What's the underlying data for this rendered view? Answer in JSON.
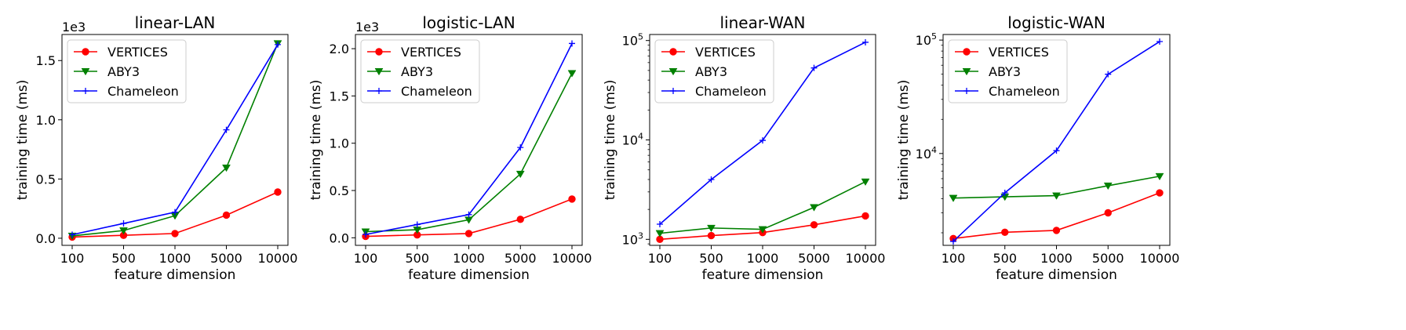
{
  "chart_data": [
    {
      "type": "line",
      "title": "linear-LAN",
      "xlabel": "feature dimension",
      "ylabel": "training time (ms)",
      "categories": [
        "100",
        "500",
        "1000",
        "5000",
        "10000"
      ],
      "yscale": "linear",
      "ylim": [
        -0.06,
        1.72
      ],
      "yticks": [
        0.0,
        0.5,
        1.0,
        1.5
      ],
      "yticklabels": [
        "0.0",
        "0.5",
        "1.0",
        "1.5"
      ],
      "offset_text": "1e3",
      "legend_position": "top-left",
      "series": [
        {
          "name": "VERTICES",
          "color": "#ff0000",
          "marker": "circle",
          "values": [
            0.01,
            0.025,
            0.04,
            0.195,
            0.39
          ]
        },
        {
          "name": "ABY3",
          "color": "#008000",
          "marker": "triangle-down",
          "values": [
            0.02,
            0.065,
            0.19,
            0.595,
            1.645
          ]
        },
        {
          "name": "Chameleon",
          "color": "#0000ff",
          "marker": "plus",
          "values": [
            0.03,
            0.125,
            0.22,
            0.915,
            1.635
          ]
        }
      ]
    },
    {
      "type": "line",
      "title": "logistic-LAN",
      "xlabel": "feature dimension",
      "ylabel": "training time (ms)",
      "categories": [
        "100",
        "500",
        "1000",
        "5000",
        "10000"
      ],
      "yscale": "linear",
      "ylim": [
        -0.08,
        2.15
      ],
      "yticks": [
        0.0,
        0.5,
        1.0,
        1.5,
        2.0
      ],
      "yticklabels": [
        "0.0",
        "0.5",
        "1.0",
        "1.5",
        "2.0"
      ],
      "offset_text": "1e3",
      "legend_position": "top-left",
      "series": [
        {
          "name": "VERTICES",
          "color": "#ff0000",
          "marker": "circle",
          "values": [
            0.015,
            0.03,
            0.045,
            0.195,
            0.41
          ]
        },
        {
          "name": "ABY3",
          "color": "#008000",
          "marker": "triangle-down",
          "values": [
            0.065,
            0.085,
            0.19,
            0.675,
            1.74
          ]
        },
        {
          "name": "Chameleon",
          "color": "#0000ff",
          "marker": "plus",
          "values": [
            0.035,
            0.14,
            0.245,
            0.955,
            2.055
          ]
        }
      ]
    },
    {
      "type": "line",
      "title": "linear-WAN",
      "xlabel": "feature dimension",
      "ylabel": "training time (ms)",
      "categories": [
        "100",
        "500",
        "1000",
        "5000",
        "10000"
      ],
      "yscale": "log",
      "ylim": [
        870,
        115000
      ],
      "yticks": [
        1000,
        10000,
        100000
      ],
      "yticklabels": [
        [
          "10",
          "3"
        ],
        [
          "10",
          "4"
        ],
        [
          "10",
          "5"
        ]
      ],
      "offset_text": "",
      "legend_position": "top-left",
      "series": [
        {
          "name": "VERTICES",
          "color": "#ff0000",
          "marker": "circle",
          "values": [
            1000,
            1090,
            1170,
            1400,
            1720
          ]
        },
        {
          "name": "ABY3",
          "color": "#008000",
          "marker": "triangle-down",
          "values": [
            1150,
            1300,
            1260,
            2100,
            3800
          ]
        },
        {
          "name": "Chameleon",
          "color": "#0000ff",
          "marker": "plus",
          "values": [
            1420,
            4000,
            9900,
            53000,
            96000
          ]
        }
      ]
    },
    {
      "type": "line",
      "title": "logistic-WAN",
      "xlabel": "feature dimension",
      "ylabel": "training time (ms)",
      "categories": [
        "100",
        "500",
        "1000",
        "5000",
        "10000"
      ],
      "yscale": "log",
      "ylim": [
        1550,
        112000
      ],
      "yticks": [
        10000,
        100000
      ],
      "yticklabels": [
        [
          "10",
          "4"
        ],
        [
          "10",
          "5"
        ]
      ],
      "offset_text": "",
      "legend_position": "top-left",
      "series": [
        {
          "name": "VERTICES",
          "color": "#ff0000",
          "marker": "circle",
          "values": [
            1780,
            2020,
            2100,
            3000,
            4500
          ]
        },
        {
          "name": "ABY3",
          "color": "#008000",
          "marker": "triangle-down",
          "values": [
            4050,
            4150,
            4250,
            5200,
            6300
          ]
        },
        {
          "name": "Chameleon",
          "color": "#0000ff",
          "marker": "plus",
          "values": [
            1680,
            4500,
            10600,
            50000,
            97000
          ]
        }
      ]
    }
  ]
}
